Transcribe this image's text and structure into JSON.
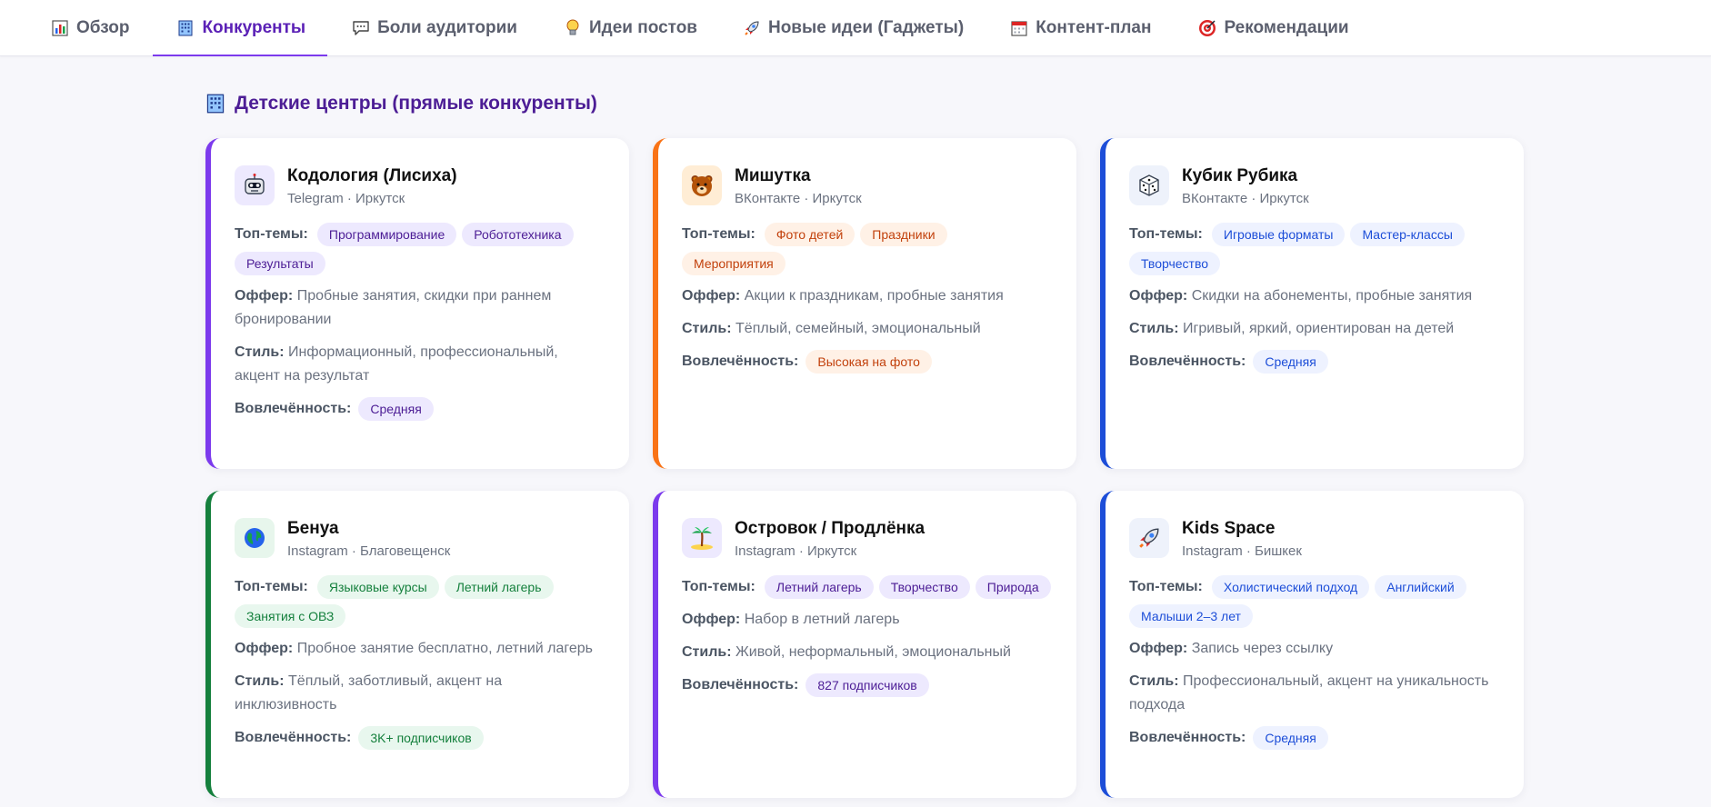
{
  "nav": {
    "tabs": [
      {
        "label": "Обзор",
        "icon": "bar-chart-icon",
        "active": false
      },
      {
        "label": "Конкуренты",
        "icon": "building-icon",
        "active": true
      },
      {
        "label": "Боли аудитории",
        "icon": "speech-bubble-icon",
        "active": false
      },
      {
        "label": "Идеи постов",
        "icon": "lightbulb-icon",
        "active": false
      },
      {
        "label": "Новые идеи (Гаджеты)",
        "icon": "rocket-icon",
        "active": false
      },
      {
        "label": "Контент-план",
        "icon": "calendar-icon",
        "active": false
      },
      {
        "label": "Рекомендации",
        "icon": "target-icon",
        "active": false
      }
    ]
  },
  "section": {
    "title": "Детские центры (прямые конкуренты)",
    "icon": "building-icon"
  },
  "labels": {
    "topics": "Топ-темы:",
    "offer": "Оффер:",
    "style": "Стиль:",
    "engagement": "Вовлечённость:"
  },
  "colors": {
    "accent": "#7c3aed",
    "purple": "#7c3aed",
    "orange": "#f97316",
    "blue": "#1d4ed8",
    "green": "#15803d"
  },
  "competitors": [
    {
      "name": "Кодология (Лисиха)",
      "meta": "Telegram · Иркутск",
      "icon": "robot-icon",
      "color": "purple",
      "topics": [
        "Программирование",
        "Робототехника",
        "Результаты"
      ],
      "offer": "Пробные занятия, скидки при раннем бронировании",
      "style": "Информационный, профессиональный, акцент на результат",
      "engagement": "Средняя"
    },
    {
      "name": "Мишутка",
      "meta": "ВКонтакте · Иркутск",
      "icon": "bear-icon",
      "color": "orange",
      "topics": [
        "Фото детей",
        "Праздники",
        "Мероприятия"
      ],
      "offer": "Акции к праздникам, пробные занятия",
      "style": "Тёплый, семейный, эмоциональный",
      "engagement": "Высокая на фото"
    },
    {
      "name": "Кубик Рубика",
      "meta": "ВКонтакте · Иркутск",
      "icon": "dice-icon",
      "color": "blue",
      "topics": [
        "Игровые форматы",
        "Мастер-классы",
        "Творчество"
      ],
      "offer": "Скидки на абонементы, пробные занятия",
      "style": "Игривый, яркий, ориентирован на детей",
      "engagement": "Средняя"
    },
    {
      "name": "Бенуа",
      "meta": "Instagram · Благовещенск",
      "icon": "globe-icon",
      "color": "green",
      "topics": [
        "Языковые курсы",
        "Летний лагерь",
        "Занятия с ОВЗ"
      ],
      "offer": "Пробное занятие бесплатно, летний лагерь",
      "style": "Тёплый, заботливый, акцент на инклюзивность",
      "engagement": "3K+ подписчиков"
    },
    {
      "name": "Островок / Продлёнка",
      "meta": "Instagram · Иркутск",
      "icon": "palm-island-icon",
      "color": "purple",
      "topics": [
        "Летний лагерь",
        "Творчество",
        "Природа"
      ],
      "offer": "Набор в летний лагерь",
      "style": "Живой, неформальный, эмоциональный",
      "engagement": "827 подписчиков"
    },
    {
      "name": "Kids Space",
      "meta": "Instagram · Бишкек",
      "icon": "rocket-icon",
      "color": "blue",
      "topics": [
        "Холистический подход",
        "Английский",
        "Малыши 2–3 лет"
      ],
      "offer": "Запись через ссылку",
      "style": "Профессиональный, акцент на уникальность подхода",
      "engagement": "Средняя"
    }
  ]
}
